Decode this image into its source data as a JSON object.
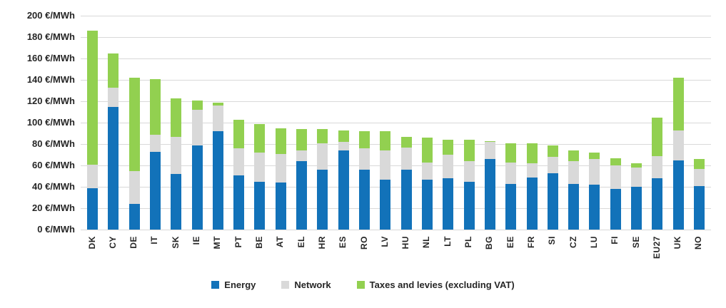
{
  "chart_data": {
    "type": "bar",
    "stacked": true,
    "unit": "€/MWh",
    "categories": [
      "DK",
      "CY",
      "DE",
      "IT",
      "SK",
      "IE",
      "MT",
      "PT",
      "BE",
      "AT",
      "EL",
      "HR",
      "ES",
      "RO",
      "LV",
      "HU",
      "NL",
      "LT",
      "PL",
      "BG",
      "EE",
      "FR",
      "SI",
      "CZ",
      "LU",
      "FI",
      "SE",
      "EU27",
      "UK",
      "NO"
    ],
    "series": [
      {
        "name": "Energy",
        "color": "#1272b9",
        "values": [
          39,
          115,
          24,
          73,
          52,
          79,
          92,
          51,
          45,
          44,
          64,
          56,
          74,
          56,
          47,
          56,
          47,
          48,
          45,
          66,
          43,
          49,
          53,
          43,
          42,
          38,
          40,
          48,
          65,
          41
        ]
      },
      {
        "name": "Network",
        "color": "#d9d9d9",
        "values": [
          22,
          18,
          31,
          16,
          35,
          33,
          24,
          25,
          27,
          27,
          10,
          25,
          8,
          20,
          27,
          21,
          16,
          22,
          19,
          16,
          20,
          13,
          15,
          21,
          24,
          22,
          18,
          21,
          28,
          16
        ]
      },
      {
        "name": "Taxes and levies (excluding VAT)",
        "color": "#92d050",
        "values": [
          125,
          32,
          87,
          52,
          36,
          9,
          3,
          27,
          27,
          24,
          20,
          13,
          11,
          16,
          18,
          10,
          23,
          14,
          20,
          1,
          18,
          19,
          11,
          10,
          6,
          7,
          4,
          36,
          49,
          9
        ]
      }
    ],
    "ylim": [
      0,
      200
    ],
    "ytick_step": 20,
    "grid": true,
    "legend_position": "bottom"
  },
  "axis": {
    "y_ticks": [
      {
        "value": 200,
        "label": "200 €/MWh"
      },
      {
        "value": 180,
        "label": "180 €/MWh"
      },
      {
        "value": 160,
        "label": "160 €/MWh"
      },
      {
        "value": 140,
        "label": "140 €/MWh"
      },
      {
        "value": 120,
        "label": "120 €/MWh"
      },
      {
        "value": 100,
        "label": "100 €/MWh"
      },
      {
        "value": 80,
        "label": "80 €/MWh"
      },
      {
        "value": 60,
        "label": "60 €/MWh"
      },
      {
        "value": 40,
        "label": "40 €/MWh"
      },
      {
        "value": 20,
        "label": "20 €/MWh"
      },
      {
        "value": 0,
        "label": "0 €/MWh"
      }
    ]
  },
  "legend": {
    "items": [
      {
        "label": "Energy",
        "color": "#1272b9"
      },
      {
        "label": "Network",
        "color": "#d9d9d9"
      },
      {
        "label": "Taxes and levies (excluding VAT)",
        "color": "#92d050"
      }
    ]
  },
  "colors": {
    "gridline": "#d9d9d9",
    "axis_text": "#262626",
    "background": "#ffffff"
  }
}
